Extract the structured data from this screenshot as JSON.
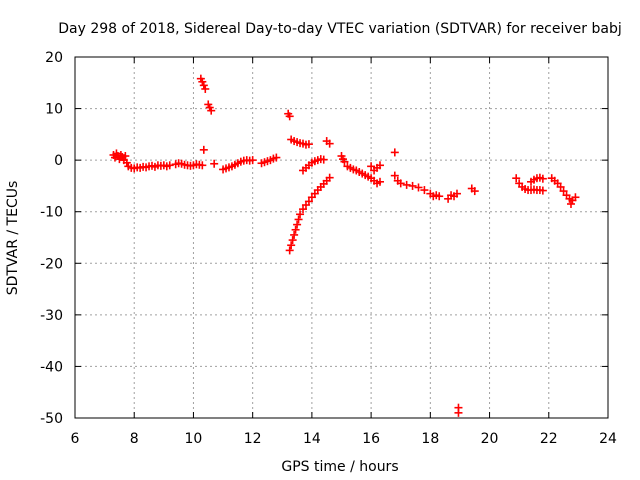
{
  "chart_data": {
    "type": "scatter",
    "title": "Day 298 of 2018, Sidereal Day-to-day VTEC variation (SDTVAR) for receiver babj",
    "xlabel": "GPS time / hours",
    "ylabel": "SDTVAR / TECUs",
    "xlim": [
      6,
      24
    ],
    "ylim": [
      -50,
      20
    ],
    "xticks": [
      6,
      8,
      10,
      12,
      14,
      16,
      18,
      20,
      22,
      24
    ],
    "yticks": [
      20,
      10,
      0,
      -10,
      -20,
      -30,
      -40,
      -50
    ],
    "xtick_labels": [
      "6",
      "8",
      "10",
      "12",
      "14",
      "16",
      "18",
      "20",
      "22",
      "24"
    ],
    "ytick_labels": [
      "20",
      "10",
      "0",
      "-10",
      "-20",
      "-30",
      "-40",
      "-50"
    ],
    "grid": true,
    "marker": "+",
    "color": "#ff0000",
    "series": [
      {
        "name": "SDTVAR",
        "points": [
          [
            7.3,
            1.0
          ],
          [
            7.35,
            0.5
          ],
          [
            7.4,
            1.3
          ],
          [
            7.45,
            0.8
          ],
          [
            7.5,
            0.2
          ],
          [
            7.55,
            1.0
          ],
          [
            7.6,
            0.6
          ],
          [
            7.65,
            0.0
          ],
          [
            7.7,
            0.8
          ],
          [
            7.75,
            -0.5
          ],
          [
            7.8,
            -1.2
          ],
          [
            7.9,
            -1.5
          ],
          [
            8.0,
            -1.6
          ],
          [
            8.1,
            -1.4
          ],
          [
            8.2,
            -1.5
          ],
          [
            8.3,
            -1.3
          ],
          [
            8.4,
            -1.4
          ],
          [
            8.5,
            -1.2
          ],
          [
            8.6,
            -1.1
          ],
          [
            8.7,
            -1.3
          ],
          [
            8.8,
            -1.0
          ],
          [
            8.9,
            -1.1
          ],
          [
            9.0,
            -1.0
          ],
          [
            9.1,
            -1.2
          ],
          [
            9.2,
            -1.0
          ],
          [
            9.4,
            -0.8
          ],
          [
            9.5,
            -0.6
          ],
          [
            9.6,
            -0.7
          ],
          [
            9.7,
            -0.9
          ],
          [
            9.8,
            -1.0
          ],
          [
            9.9,
            -1.1
          ],
          [
            10.0,
            -1.0
          ],
          [
            10.1,
            -0.8
          ],
          [
            10.2,
            -0.9
          ],
          [
            10.3,
            -1.0
          ],
          [
            10.25,
            15.8
          ],
          [
            10.3,
            15.2
          ],
          [
            10.35,
            14.5
          ],
          [
            10.4,
            13.8
          ],
          [
            10.5,
            10.8
          ],
          [
            10.55,
            10.2
          ],
          [
            10.6,
            9.6
          ],
          [
            10.35,
            2.0
          ],
          [
            10.7,
            -0.7
          ],
          [
            11.0,
            -1.8
          ],
          [
            11.1,
            -1.6
          ],
          [
            11.2,
            -1.4
          ],
          [
            11.3,
            -1.2
          ],
          [
            11.4,
            -0.9
          ],
          [
            11.5,
            -0.6
          ],
          [
            11.6,
            -0.3
          ],
          [
            11.7,
            -0.1
          ],
          [
            11.8,
            0.0
          ],
          [
            11.9,
            -0.1
          ],
          [
            12.0,
            0.0
          ],
          [
            12.3,
            -0.6
          ],
          [
            12.4,
            -0.4
          ],
          [
            12.5,
            -0.2
          ],
          [
            12.6,
            0.0
          ],
          [
            12.7,
            0.3
          ],
          [
            12.8,
            0.5
          ],
          [
            13.2,
            9.0
          ],
          [
            13.25,
            8.5
          ],
          [
            13.3,
            4.0
          ],
          [
            13.4,
            3.7
          ],
          [
            13.5,
            3.5
          ],
          [
            13.6,
            3.3
          ],
          [
            13.7,
            3.2
          ],
          [
            13.8,
            3.0
          ],
          [
            13.9,
            3.1
          ],
          [
            13.25,
            -17.5
          ],
          [
            13.3,
            -16.5
          ],
          [
            13.35,
            -15.5
          ],
          [
            13.4,
            -14.5
          ],
          [
            13.45,
            -13.5
          ],
          [
            13.5,
            -12.5
          ],
          [
            13.55,
            -11.5
          ],
          [
            13.6,
            -10.5
          ],
          [
            13.7,
            -9.5
          ],
          [
            13.8,
            -8.7
          ],
          [
            13.9,
            -8.0
          ],
          [
            14.0,
            -7.2
          ],
          [
            14.1,
            -6.5
          ],
          [
            14.2,
            -5.8
          ],
          [
            14.3,
            -5.2
          ],
          [
            14.4,
            -4.6
          ],
          [
            14.5,
            -4.0
          ],
          [
            14.6,
            -3.4
          ],
          [
            13.7,
            -2.0
          ],
          [
            13.8,
            -1.5
          ],
          [
            13.9,
            -1.0
          ],
          [
            14.0,
            -0.5
          ],
          [
            14.1,
            -0.2
          ],
          [
            14.2,
            0.0
          ],
          [
            14.3,
            0.2
          ],
          [
            14.4,
            0.1
          ],
          [
            14.5,
            3.7
          ],
          [
            14.6,
            3.2
          ],
          [
            15.0,
            0.8
          ],
          [
            15.05,
            0.2
          ],
          [
            15.1,
            -0.3
          ],
          [
            15.2,
            -1.2
          ],
          [
            15.3,
            -1.5
          ],
          [
            15.4,
            -1.8
          ],
          [
            15.5,
            -2.0
          ],
          [
            15.6,
            -2.3
          ],
          [
            15.7,
            -2.6
          ],
          [
            15.8,
            -2.9
          ],
          [
            15.9,
            -3.2
          ],
          [
            16.0,
            -3.5
          ],
          [
            16.1,
            -4.0
          ],
          [
            16.2,
            -4.5
          ],
          [
            16.3,
            -4.2
          ],
          [
            16.1,
            -2.0
          ],
          [
            16.2,
            -1.5
          ],
          [
            16.3,
            -1.0
          ],
          [
            16.0,
            -1.2
          ],
          [
            16.8,
            1.5
          ],
          [
            16.8,
            -3.0
          ],
          [
            16.9,
            -4.0
          ],
          [
            17.0,
            -4.5
          ],
          [
            17.2,
            -4.8
          ],
          [
            17.4,
            -5.0
          ],
          [
            17.6,
            -5.3
          ],
          [
            17.8,
            -5.8
          ],
          [
            18.0,
            -6.5
          ],
          [
            18.1,
            -7.0
          ],
          [
            18.2,
            -6.8
          ],
          [
            18.3,
            -7.0
          ],
          [
            18.6,
            -7.5
          ],
          [
            18.7,
            -6.8
          ],
          [
            18.8,
            -7.0
          ],
          [
            18.9,
            -6.5
          ],
          [
            19.4,
            -5.5
          ],
          [
            19.5,
            -6.0
          ],
          [
            18.95,
            -48.0
          ],
          [
            18.95,
            -49.0
          ],
          [
            20.9,
            -3.5
          ],
          [
            21.0,
            -4.5
          ],
          [
            21.1,
            -5.2
          ],
          [
            21.2,
            -5.6
          ],
          [
            21.3,
            -5.8
          ],
          [
            21.4,
            -5.8
          ],
          [
            21.5,
            -5.7
          ],
          [
            21.6,
            -5.8
          ],
          [
            21.7,
            -5.8
          ],
          [
            21.8,
            -5.9
          ],
          [
            21.4,
            -4.2
          ],
          [
            21.5,
            -3.8
          ],
          [
            21.6,
            -3.5
          ],
          [
            21.7,
            -3.4
          ],
          [
            21.8,
            -3.6
          ],
          [
            22.1,
            -3.5
          ],
          [
            22.2,
            -4.0
          ],
          [
            22.3,
            -4.5
          ],
          [
            22.4,
            -5.2
          ],
          [
            22.5,
            -6.0
          ],
          [
            22.6,
            -6.8
          ],
          [
            22.7,
            -7.5
          ],
          [
            22.75,
            -8.5
          ],
          [
            22.8,
            -7.8
          ],
          [
            22.9,
            -7.2
          ]
        ]
      }
    ]
  }
}
